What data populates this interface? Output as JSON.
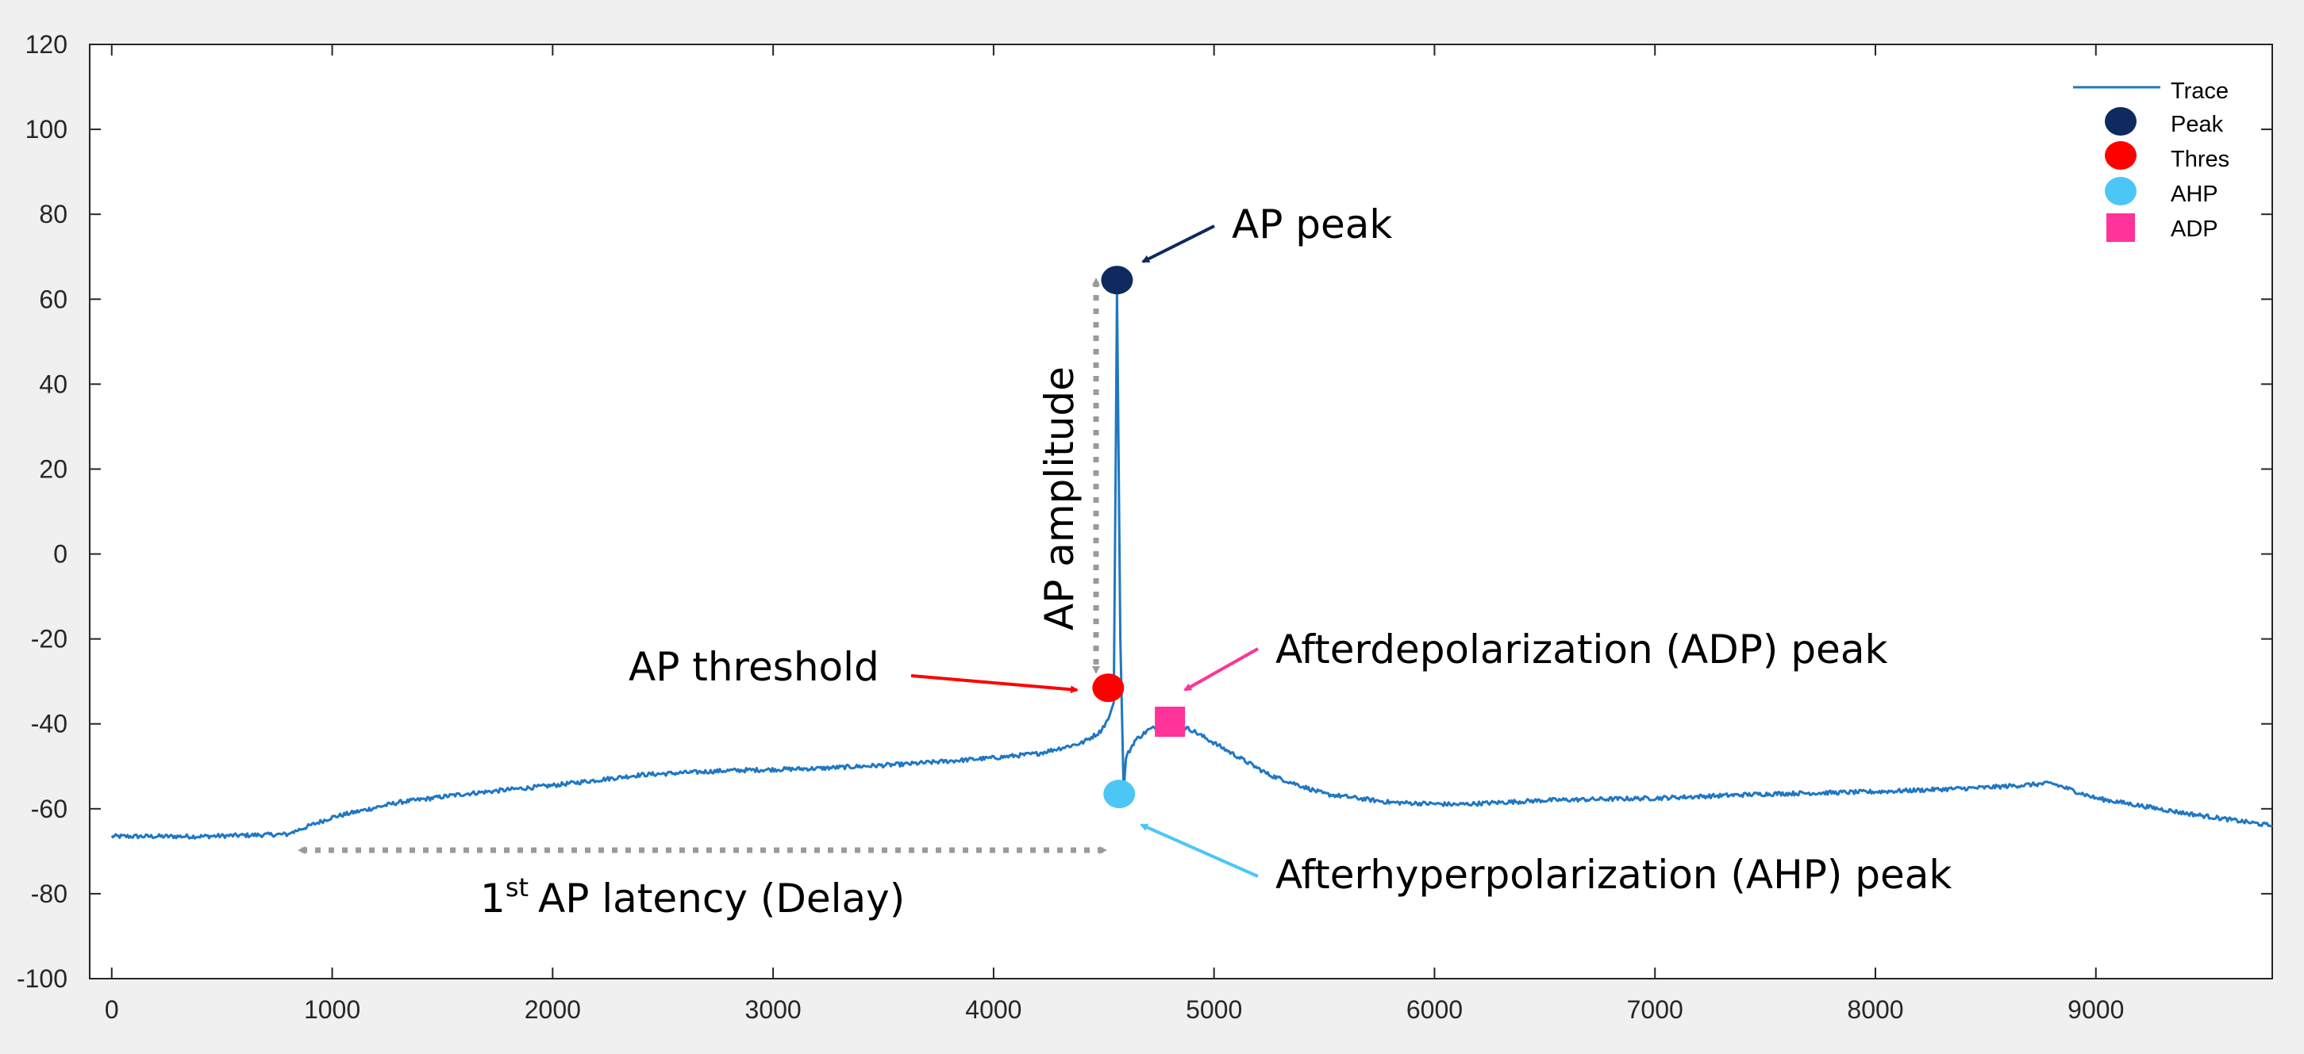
{
  "chart_data": {
    "type": "line",
    "title": "",
    "xlabel": "",
    "ylabel": "",
    "xlim": [
      -100,
      9800
    ],
    "ylim": [
      -100,
      120
    ],
    "xticks": [
      0,
      1000,
      2000,
      3000,
      4000,
      5000,
      6000,
      7000,
      8000,
      9000
    ],
    "yticks": [
      -100,
      -80,
      -60,
      -40,
      -20,
      0,
      20,
      40,
      60,
      80,
      100,
      120
    ],
    "grid": false,
    "legend_position": "top-right",
    "series": [
      {
        "name": "Trace",
        "color": "#1f77c4",
        "x": [
          0,
          400,
          800,
          820,
          1000,
          1300,
          1600,
          2000,
          2400,
          2800,
          3200,
          3600,
          4000,
          4200,
          4400,
          4480,
          4520,
          4545,
          4560,
          4575,
          4590,
          4600,
          4640,
          4700,
          4800,
          4900,
          5050,
          5250,
          5500,
          5800,
          6100,
          6500,
          7000,
          7500,
          8000,
          8500,
          8800,
          9000,
          9400,
          9800
        ],
        "y": [
          -66.5,
          -66.5,
          -66,
          -65.5,
          -62,
          -58.5,
          -56.5,
          -54.5,
          -52,
          -51,
          -50.5,
          -49.5,
          -48,
          -47,
          -44.5,
          -42,
          -39,
          -35,
          62,
          -20,
          -56,
          -48,
          -44,
          -41.5,
          -39.5,
          -41.5,
          -46,
          -52,
          -56.5,
          -58.5,
          -59,
          -58,
          -57.5,
          -56.5,
          -56,
          -55,
          -54,
          -57.5,
          -61,
          -64
        ],
        "noise": 0.5
      },
      {
        "name": "Peak",
        "color": "#0e2a5e",
        "marker": "circle",
        "x": [
          4560
        ],
        "y": [
          64.5
        ]
      },
      {
        "name": "Thres",
        "color": "#ff0000",
        "marker": "circle",
        "x": [
          4520
        ],
        "y": [
          -31.5
        ]
      },
      {
        "name": "AHP",
        "color": "#4cc7f5",
        "marker": "circle",
        "x": [
          4570
        ],
        "y": [
          -56.5
        ]
      },
      {
        "name": "ADP",
        "color": "#ff3399",
        "marker": "square",
        "x": [
          4800
        ],
        "y": [
          -39.5
        ]
      }
    ],
    "annotations": {
      "peak": "AP peak",
      "threshold": "AP threshold",
      "amplitude": "AP amplitude",
      "adp": "Afterdepolarization (ADP) peak",
      "ahp": "Afterhyperpolarization (AHP) peak",
      "latency_sup": "st",
      "latency_prefix": "1",
      "latency_rest": "AP latency (Delay)"
    },
    "colors": {
      "axis": "#262626",
      "plot_background": "#ffffff",
      "figure_background": "#f0f0f0",
      "dotted_arrow": "#9a9a9a",
      "peak_arrow": "#0e2a5e",
      "threshold_arrow": "#ff0000",
      "adp_arrow": "#ff3399",
      "ahp_arrow": "#4cc7f5"
    }
  }
}
